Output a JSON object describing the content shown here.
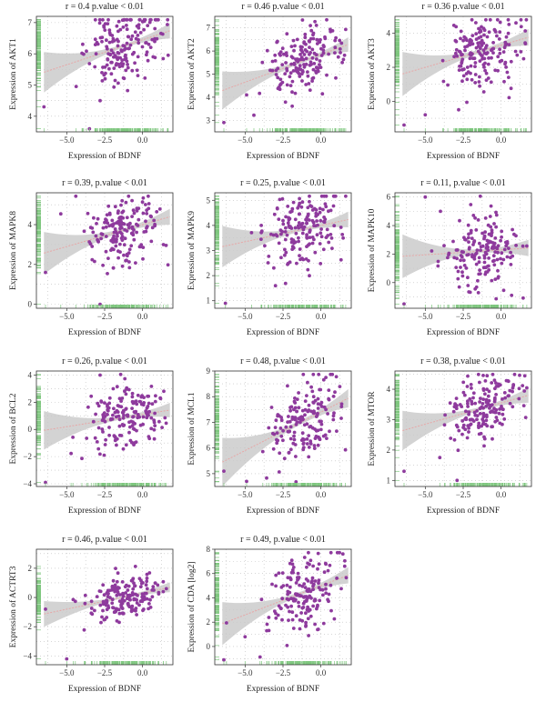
{
  "figure": {
    "bg": "#ffffff"
  },
  "style": {
    "point_color": "#8e3a9d",
    "ribbon_color": "#c8c8c8",
    "line_color": "#e7a7a7",
    "rug_color": "#7fc77f",
    "grid_color": "#bdbdbd"
  },
  "chart_data": [
    {
      "type": "scatter",
      "title": "r = 0.4 p.value < 0.01",
      "xlabel": "Expression of BDNF",
      "ylabel": "Expression of AKT1",
      "xlim": [
        -7,
        2
      ],
      "ylim": [
        3.5,
        7.2
      ],
      "xticks": [
        -5.0,
        -2.5,
        0.0
      ],
      "xtick_labels": [
        "−5.0",
        "−2.5",
        "0.0"
      ],
      "yticks": [
        4,
        5,
        6,
        7
      ],
      "ytick_labels": [
        "4",
        "5",
        "6",
        "7"
      ],
      "r": 0.4,
      "fit": {
        "slope": 0.16,
        "intercept": 6.45
      },
      "ystd": 0.55,
      "seed": 11,
      "outliers": [
        [
          -6.5,
          4.3
        ],
        [
          -3.5,
          3.6
        ],
        [
          -2.8,
          4.5
        ]
      ]
    },
    {
      "type": "scatter",
      "title": "r = 0.46 p.value < 0.01",
      "xlabel": "Expression of BDNF",
      "ylabel": "Expression of AKT2",
      "xlim": [
        -7,
        2
      ],
      "ylim": [
        2.5,
        7.5
      ],
      "xticks": [
        -5.0,
        -2.5,
        0.0
      ],
      "xtick_labels": [
        "−5.0",
        "−2.5",
        "0.0"
      ],
      "yticks": [
        3,
        4,
        5,
        6,
        7
      ],
      "ytick_labels": [
        "3",
        "4",
        "5",
        "6",
        "7"
      ],
      "r": 0.46,
      "fit": {
        "slope": 0.24,
        "intercept": 5.85
      },
      "ystd": 0.7,
      "seed": 23,
      "outliers": [
        [
          -6.4,
          2.9
        ],
        [
          -4.9,
          4.1
        ]
      ]
    },
    {
      "type": "scatter",
      "title": "r = 0.36 p.value < 0.01",
      "xlabel": "Expression of BDNF",
      "ylabel": "Expression of AKT3",
      "xlim": [
        -7,
        2
      ],
      "ylim": [
        -1.8,
        5.0
      ],
      "xticks": [
        -5.0,
        -2.5,
        0.0
      ],
      "xtick_labels": [
        "−5.0",
        "−2.5",
        "0.0"
      ],
      "yticks": [
        0,
        2,
        4
      ],
      "ytick_labels": [
        "0",
        "2",
        "4"
      ],
      "r": 0.36,
      "fit": {
        "slope": 0.26,
        "intercept": 3.3
      },
      "ystd": 1.1,
      "seed": 37,
      "outliers": [
        [
          -6.4,
          -1.4
        ],
        [
          -5.0,
          -0.8
        ],
        [
          -2.8,
          -0.5
        ]
      ]
    },
    {
      "type": "scatter",
      "title": "r = 0.39, p.value < 0.01",
      "xlabel": "Expression of BDNF",
      "ylabel": "Expression of MAPK8",
      "xlim": [
        -7,
        2
      ],
      "ylim": [
        -0.2,
        5.6
      ],
      "xticks": [
        -5.0,
        -2.5,
        0.0
      ],
      "xtick_labels": [
        "−5.0",
        "−2.5",
        "0.0"
      ],
      "yticks": [
        0,
        2,
        4
      ],
      "ytick_labels": [
        "0",
        "2",
        "4"
      ],
      "r": 0.39,
      "fit": {
        "slope": 0.22,
        "intercept": 4.0
      },
      "ystd": 0.9,
      "seed": 41,
      "outliers": [
        [
          -6.4,
          1.6
        ],
        [
          -2.8,
          0.0
        ]
      ]
    },
    {
      "type": "scatter",
      "title": "r = 0.25, p.value < 0.01",
      "xlabel": "Expression of BDNF",
      "ylabel": "Expression of MAPK9",
      "xlim": [
        -7,
        2
      ],
      "ylim": [
        0.7,
        5.3
      ],
      "xticks": [
        -5.0,
        -2.5,
        0.0
      ],
      "xtick_labels": [
        "−5.0",
        "−2.5",
        "0.0"
      ],
      "yticks": [
        1,
        2,
        3,
        4,
        5
      ],
      "ytick_labels": [
        "1",
        "2",
        "3",
        "4",
        "5"
      ],
      "r": 0.25,
      "fit": {
        "slope": 0.13,
        "intercept": 4.0
      },
      "ystd": 0.7,
      "seed": 53,
      "outliers": [
        [
          -6.3,
          0.9
        ],
        [
          -3.0,
          1.6
        ]
      ]
    },
    {
      "type": "scatter",
      "title": "r = 0.11, p.value < 0.01",
      "xlabel": "Expression of BDNF",
      "ylabel": "Expression of MAPK10",
      "xlim": [
        -7,
        2
      ],
      "ylim": [
        -1.8,
        6.3
      ],
      "xticks": [
        -5.0,
        -2.5,
        0.0
      ],
      "xtick_labels": [
        "−5.0",
        "−2.5",
        "0.0"
      ],
      "yticks": [
        0,
        2,
        4,
        6
      ],
      "ytick_labels": [
        "0",
        "2",
        "4",
        "6"
      ],
      "r": 0.11,
      "fit": {
        "slope": 0.07,
        "intercept": 2.3
      },
      "ystd": 1.3,
      "seed": 67,
      "outliers": [
        [
          -6.4,
          -1.5
        ],
        [
          -5.0,
          6.0
        ],
        [
          -4.0,
          5.0
        ]
      ]
    },
    {
      "type": "scatter",
      "title": "r = 0.26, p.value < 0.01",
      "xlabel": "Expression of BDNF",
      "ylabel": "Expression of BCL2",
      "xlim": [
        -7,
        2
      ],
      "ylim": [
        -4.2,
        4.3
      ],
      "xticks": [
        -5.0,
        -2.5,
        0.0
      ],
      "xtick_labels": [
        "−5.0",
        "−2.5",
        "0.0"
      ],
      "yticks": [
        -4,
        -2,
        0,
        2,
        4
      ],
      "ytick_labels": [
        "−4",
        "−2",
        "0",
        "2",
        "4"
      ],
      "r": 0.26,
      "fit": {
        "slope": 0.18,
        "intercept": 1.1
      },
      "ystd": 1.2,
      "seed": 79,
      "outliers": [
        [
          -6.4,
          -3.9
        ],
        [
          -2.8,
          4.0
        ]
      ]
    },
    {
      "type": "scatter",
      "title": "r = 0.48, p.value < 0.01",
      "xlabel": "Expression of BDNF",
      "ylabel": "Expression of MCL1",
      "xlim": [
        -7,
        2
      ],
      "ylim": [
        4.5,
        9.0
      ],
      "xticks": [
        -5.0,
        -2.5,
        0.0
      ],
      "xtick_labels": [
        "−5.0",
        "−2.5",
        "0.0"
      ],
      "yticks": [
        5,
        6,
        7,
        8,
        9
      ],
      "ytick_labels": [
        "5",
        "6",
        "7",
        "8",
        "9"
      ],
      "r": 0.48,
      "fit": {
        "slope": 0.3,
        "intercept": 7.4
      },
      "ystd": 0.8,
      "seed": 83,
      "outliers": [
        [
          -6.4,
          5.1
        ],
        [
          -4.9,
          4.7
        ]
      ]
    },
    {
      "type": "scatter",
      "title": "r = 0.38, p.value < 0.01",
      "xlabel": "Expression of BDNF",
      "ylabel": "Expression of MTOR",
      "xlim": [
        -7,
        2
      ],
      "ylim": [
        0.8,
        4.6
      ],
      "xticks": [
        -5.0,
        -2.5,
        0.0
      ],
      "xtick_labels": [
        "−5.0",
        "−2.5",
        "0.0"
      ],
      "yticks": [
        1,
        2,
        3,
        4
      ],
      "ytick_labels": [
        "1",
        "2",
        "3",
        "4"
      ],
      "r": 0.38,
      "fit": {
        "slope": 0.14,
        "intercept": 3.55
      },
      "ystd": 0.55,
      "seed": 97,
      "outliers": [
        [
          -6.4,
          1.3
        ],
        [
          -2.9,
          1.0
        ]
      ]
    },
    {
      "type": "scatter",
      "title": "r = 0.46, p.value < 0.01",
      "xlabel": "Expression of BDNF",
      "ylabel": "Expression of ACTRT3",
      "xlim": [
        -7,
        2
      ],
      "ylim": [
        -4.6,
        3.3
      ],
      "xticks": [
        -5.0,
        -2.5,
        0.0
      ],
      "xtick_labels": [
        "−5.0",
        "−2.5",
        "0.0"
      ],
      "yticks": [
        -4,
        -2,
        0,
        2
      ],
      "ytick_labels": [
        "−4",
        "−2",
        "0",
        "2"
      ],
      "r": 0.46,
      "fit": {
        "slope": 0.22,
        "intercept": 0.3
      },
      "ystd": 0.75,
      "seed": 101,
      "outliers": [
        [
          -5.0,
          -4.2
        ],
        [
          -6.4,
          -0.8
        ]
      ]
    },
    {
      "type": "scatter",
      "title": "r = 0.49, p.value < 0.01",
      "xlabel": "Expression of BDNF",
      "ylabel": "Expression of CDA [log2]",
      "xlim": [
        -7,
        2
      ],
      "ylim": [
        -1.5,
        8.0
      ],
      "xticks": [
        -5.0,
        -2.5,
        0.0
      ],
      "xtick_labels": [
        "−5.0",
        "−2.5",
        "0.0"
      ],
      "yticks": [
        0,
        2,
        4,
        6,
        8
      ],
      "ytick_labels": [
        "0",
        "2",
        "4",
        "6",
        "8"
      ],
      "r": 0.49,
      "fit": {
        "slope": 0.48,
        "intercept": 5.0
      },
      "ystd": 1.5,
      "seed": 113,
      "outliers": [
        [
          -6.4,
          -1.1
        ],
        [
          -5.0,
          0.8
        ]
      ]
    }
  ]
}
